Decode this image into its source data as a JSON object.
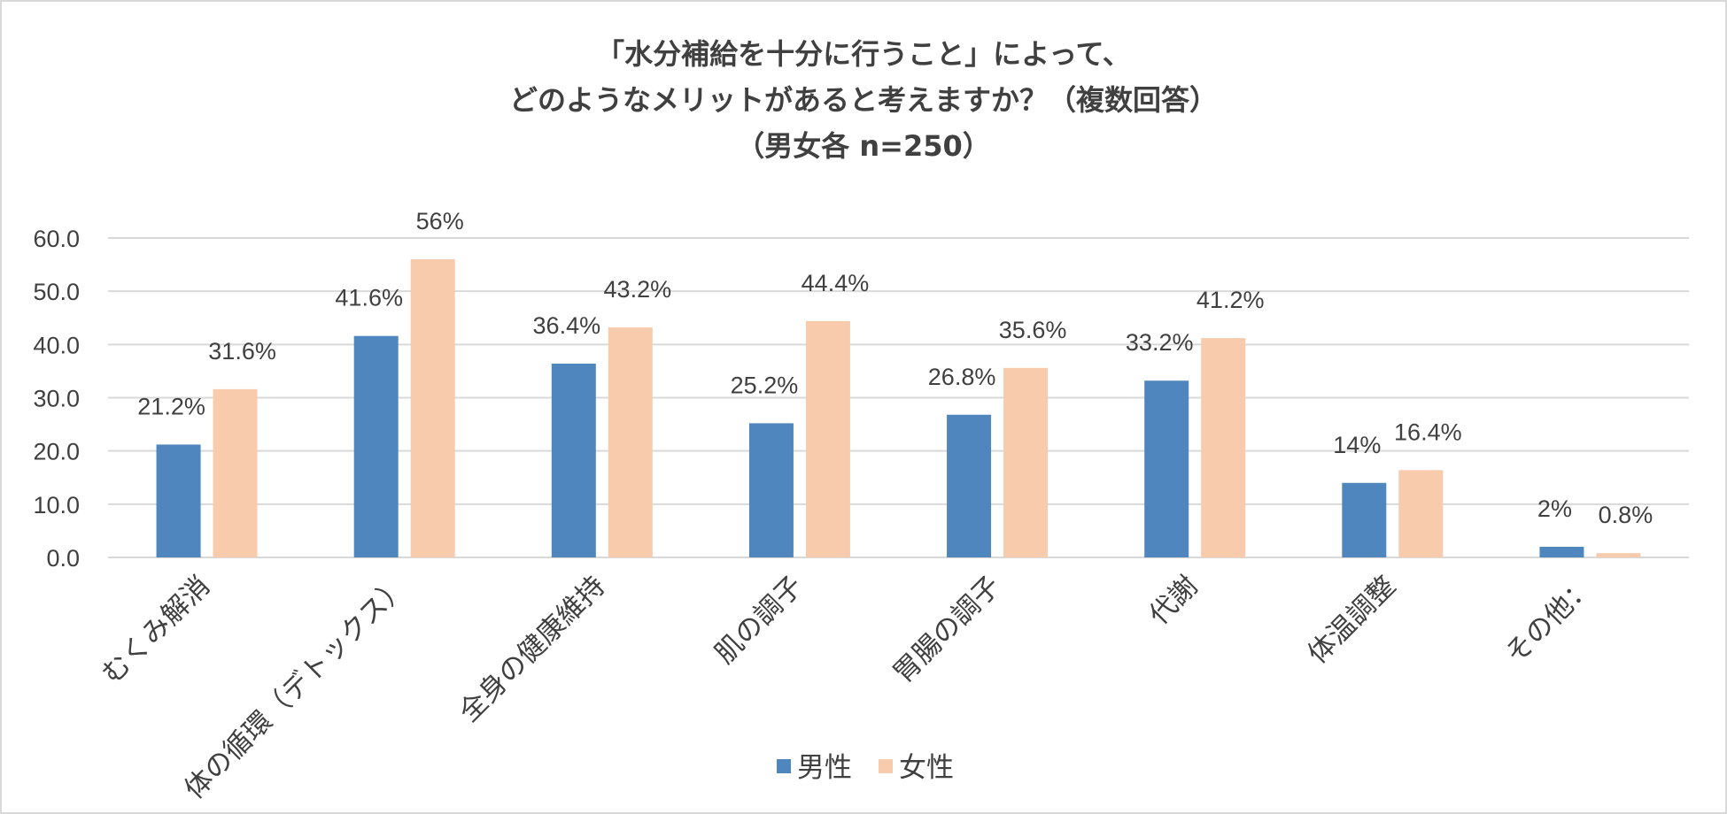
{
  "chart_data": {
    "type": "bar",
    "title_lines": [
      "「水分補給を十分に行うこと」によって、",
      "どのようなメリットがあると考えますか？（複数回答）",
      "（男女各 n=250）"
    ],
    "categories": [
      "むくみ解消",
      "体の循環（デトックス）",
      "全身の健康維持",
      "肌の調子",
      "胃腸の調子",
      "代謝",
      "体温調整",
      "その他："
    ],
    "series": [
      {
        "name": "男性",
        "color": "#4f86be",
        "values": [
          21.2,
          41.6,
          36.4,
          25.2,
          26.8,
          33.2,
          14,
          2
        ],
        "labels": [
          "21.2%",
          "41.6%",
          "36.4%",
          "25.2%",
          "26.8%",
          "33.2%",
          "14%",
          "2%"
        ]
      },
      {
        "name": "女性",
        "color": "#f8cbad",
        "values": [
          31.6,
          56,
          43.2,
          44.4,
          35.6,
          41.2,
          16.4,
          0.8
        ],
        "labels": [
          "31.6%",
          "56%",
          "43.2%",
          "44.4%",
          "35.6%",
          "41.2%",
          "16.4%",
          "0.8%"
        ]
      }
    ],
    "ylim": [
      0,
      60
    ],
    "yticks": [
      "0.0",
      "10.0",
      "20.0",
      "30.0",
      "40.0",
      "50.0",
      "60.0"
    ],
    "xlabel": "",
    "ylabel": "",
    "grid": true,
    "legend_position": "bottom"
  }
}
